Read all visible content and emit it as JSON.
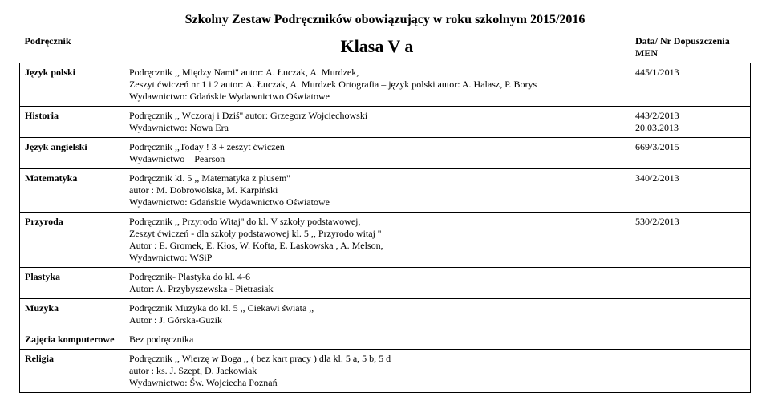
{
  "doc_title": "Szkolny Zestaw Podręczników obowiązujący w roku szkolnym 2015/2016",
  "header": {
    "col1": "Podręcznik",
    "col2": "Klasa  V a",
    "col3": "Data/ Nr Dopuszczenia MEN"
  },
  "rows": [
    {
      "subject": "Język polski",
      "content": "Podręcznik ,, Między Nami''  autor:  A. Łuczak, A. Murdzek,\nZeszyt ćwiczeń  nr 1 i 2   autor:  A. Łuczak, A. Murdzek   Ortografia – język polski  autor: A. Halasz, P. Borys\nWydawnictwo:  Gdańskie Wydawnictwo Oświatowe",
      "approval": "445/1/2013"
    },
    {
      "subject": "Historia",
      "content": "Podręcznik ,, Wczoraj i Dziś''   autor: Grzegorz  Wojciechowski\nWydawnictwo:  Nowa Era",
      "approval": "443/2/2013\n20.03.2013"
    },
    {
      "subject": "Język angielski",
      "content": "Podręcznik ,,Today ! 3  +  zeszyt ćwiczeń\nWydawnictwo – Pearson",
      "approval": "669/3/2015"
    },
    {
      "subject": "Matematyka",
      "content": "Podręcznik  kl. 5 ,, Matematyka z plusem''\nautor : M. Dobrowolska, M. Karpiński\nWydawnictwo:  Gdańskie Wydawnictwo Oświatowe",
      "approval": "340/2/2013"
    },
    {
      "subject": "Przyroda",
      "content": "Podręcznik ,, Przyrodo Witaj''  do kl. V szkoły podstawowej,\nZeszyt ćwiczeń - dla szkoły podstawowej  kl. 5 ,, Przyrodo witaj  ''\nAutor : E. Gromek, E. Kłos, W. Kofta,  E. Laskowska , A. Melson,\nWydawnictwo:  WSiP",
      "approval": "530/2/2013"
    },
    {
      "subject": "Plastyka",
      "content": "Podręcznik- Plastyka do kl. 4-6\nAutor:  A. Przybyszewska - Pietrasiak",
      "approval": ""
    },
    {
      "subject": "Muzyka",
      "content": "Podręcznik  Muzyka  do kl. 5 ,, Ciekawi świata ,,\nAutor : J. Górska-Guzik",
      "approval": ""
    },
    {
      "subject": "Zajęcia komputerowe",
      "content": "Bez podręcznika",
      "approval": ""
    },
    {
      "subject": "Religia",
      "content": "Podręcznik  ,, Wierzę w Boga ,, ( bez  kart  pracy )  dla kl.  5 a, 5 b, 5 d\nautor : ks. J. Szept, D. Jackowiak\nWydawnictwo:  Św.  Wojciecha  Poznań",
      "approval": ""
    }
  ]
}
